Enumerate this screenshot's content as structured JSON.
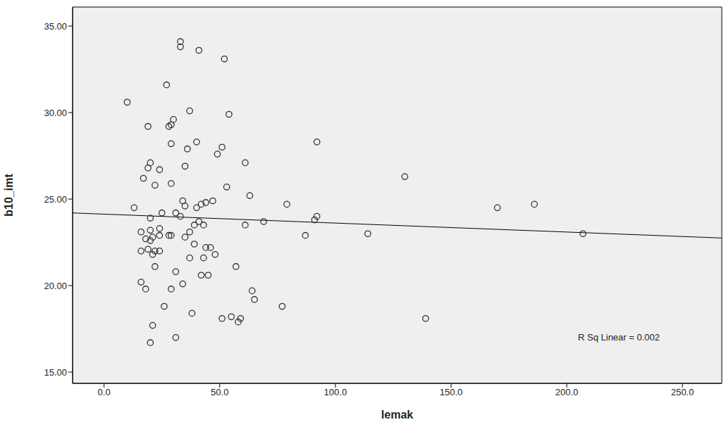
{
  "chart_data": {
    "type": "scatter",
    "x_label": "lemak",
    "y_label": "b10_imt",
    "color": "#333333",
    "marker": "hollow_circle",
    "grid": false,
    "xlim": [
      -13.6,
      267
    ],
    "ylim": [
      14.35,
      36.1
    ],
    "xticks": [
      {
        "value": 0,
        "label": "0.0"
      },
      {
        "value": 50,
        "label": "50.0"
      },
      {
        "value": 100,
        "label": "100.0"
      },
      {
        "value": 150,
        "label": "150.0"
      },
      {
        "value": 200,
        "label": "200.0"
      },
      {
        "value": 250,
        "label": "250.0"
      }
    ],
    "yticks": [
      {
        "value": 15,
        "label": "15.00"
      },
      {
        "value": 20,
        "label": "20.00"
      },
      {
        "value": 25,
        "label": "25.00"
      },
      {
        "value": 30,
        "label": "30.00"
      },
      {
        "value": 35,
        "label": "35.00"
      }
    ],
    "x": [
      10,
      13,
      16,
      16,
      16,
      17,
      18,
      18,
      19,
      19,
      19,
      20,
      20,
      20,
      20,
      21,
      20,
      21,
      21,
      22,
      22,
      22,
      24,
      24,
      24,
      24,
      25,
      26,
      27,
      28,
      28,
      29,
      29,
      29,
      29,
      29,
      30,
      31,
      31,
      31,
      33,
      33,
      33,
      34,
      34,
      35,
      35,
      35,
      36,
      37,
      37,
      37,
      38,
      39,
      39,
      40,
      40,
      41,
      41,
      42,
      42,
      43,
      43,
      44,
      44,
      45,
      46,
      47,
      48,
      49,
      51,
      52,
      51,
      53,
      54,
      55,
      57,
      58,
      59,
      61,
      61,
      63,
      64,
      65,
      69,
      77,
      79,
      87,
      91,
      92,
      92,
      114,
      130,
      139,
      170,
      186,
      207
    ],
    "values": [
      30.6,
      24.5,
      23.1,
      22.0,
      20.2,
      26.2,
      22.7,
      19.8,
      26.8,
      29.2,
      22.1,
      27.1,
      23.2,
      23.9,
      22.6,
      17.7,
      16.7,
      22.8,
      21.8,
      25.8,
      21.1,
      22.0,
      26.7,
      23.3,
      22.9,
      22.0,
      24.2,
      18.8,
      31.6,
      29.2,
      22.9,
      29.3,
      28.2,
      25.9,
      22.9,
      19.8,
      29.6,
      24.2,
      20.8,
      17.0,
      34.1,
      33.8,
      24.0,
      24.9,
      20.1,
      26.9,
      24.6,
      22.8,
      27.9,
      30.1,
      23.1,
      21.6,
      18.4,
      23.5,
      22.4,
      28.3,
      24.5,
      33.6,
      23.7,
      24.7,
      20.6,
      23.5,
      21.6,
      24.8,
      22.2,
      20.6,
      22.2,
      24.9,
      21.8,
      27.6,
      28.0,
      33.1,
      18.1,
      25.7,
      29.9,
      18.2,
      21.1,
      17.9,
      18.1,
      27.1,
      23.5,
      25.2,
      19.7,
      19.2,
      23.7,
      18.8,
      24.7,
      22.9,
      23.8,
      24.0,
      28.3,
      23.0,
      26.3,
      18.1,
      24.5,
      24.7,
      23.0
    ],
    "fit_line": {
      "x": [
        -13.6,
        267
      ],
      "values": [
        24.2,
        22.75
      ],
      "color": "#000000"
    },
    "annotation": "R Sq Linear = 0.002"
  }
}
